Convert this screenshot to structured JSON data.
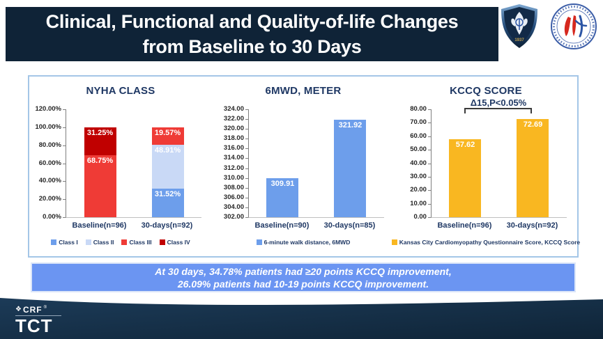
{
  "header": {
    "title_line1": "Clinical, Functional and Quality-of-life Changes",
    "title_line2": "from Baseline to 30 Days",
    "bg_color": "#0F2337",
    "shield_logo_year": "1937"
  },
  "chart_data": [
    {
      "type": "bar",
      "stacked": true,
      "title": "NYHA CLASS",
      "categories": [
        "Baseline(n=96)",
        "30-days(n=92)"
      ],
      "series": [
        {
          "name": "Class I",
          "color": "#6D9EEB",
          "values": [
            0,
            31.52
          ]
        },
        {
          "name": "Class II",
          "color": "#C9D9F6",
          "values": [
            0,
            48.91
          ]
        },
        {
          "name": "Class III",
          "color": "#EF3B36",
          "values": [
            68.75,
            19.57
          ]
        },
        {
          "name": "Class IV",
          "color": "#C00000",
          "values": [
            31.25,
            0
          ]
        }
      ],
      "ylim": [
        0,
        120
      ],
      "ytick_step": 20,
      "ytick_format": "pct",
      "label_format": "pct",
      "legend_position": "bottom",
      "grid": false
    },
    {
      "type": "bar",
      "stacked": false,
      "title": "6MWD, METER",
      "categories": [
        "Baseline(n=90)",
        "30-days(n=85)"
      ],
      "series": [
        {
          "name": "6-minute walk distance, 6MWD",
          "color": "#6D9EEB",
          "values": [
            309.91,
            321.92
          ]
        }
      ],
      "ylim": [
        302,
        324
      ],
      "ytick_step": 2,
      "ytick_format": "num",
      "label_format": "num",
      "legend_position": "bottom",
      "grid": false
    },
    {
      "type": "bar",
      "stacked": false,
      "title": "KCCQ SCORE",
      "annotation": "Δ15,P<0.05%",
      "categories": [
        "Baseline(n=96)",
        "30-days(n=92)"
      ],
      "series": [
        {
          "name": "Kansas City Cardiomyopathy Questionnaire Score, KCCQ Score",
          "color": "#F9B721",
          "values": [
            57.62,
            72.69
          ]
        }
      ],
      "ylim": [
        0,
        80
      ],
      "ytick_step": 10,
      "ytick_format": "num",
      "label_format": "num",
      "legend_position": "bottom",
      "grid": false
    }
  ],
  "banner": {
    "line1": "At 30 days, 34.78% patients had ≥20 points KCCQ improvement,",
    "line2": "26.09% patients had 10-19 points KCCQ improvement.",
    "bg_color": "#6B95F2"
  },
  "footer": {
    "crf_icon": "❖",
    "crf_label": "CRF",
    "reg_mark": "®",
    "tct_label": "TCT",
    "bg_color": "#132A3F"
  }
}
